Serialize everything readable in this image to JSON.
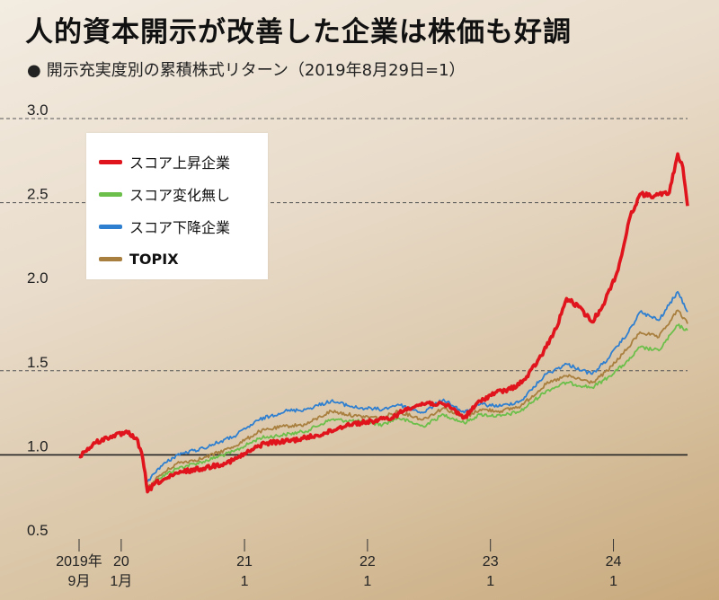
{
  "title": "人的資本開示が改善した企業は株価も好調",
  "subtitle": "開示充実度別の累積株式リターン（2019年8月29日=1）",
  "colors": {
    "score_up": "#e0141c",
    "score_flat": "#6cbf4a",
    "score_down": "#2f7fd0",
    "topix": "#a87f3e",
    "baseline": "#222222"
  },
  "chart_data": {
    "type": "line",
    "x_unit": "date",
    "ylim": [
      0.5,
      3.0
    ],
    "yticks": [
      0.5,
      1.0,
      1.5,
      2.0,
      2.5,
      3.0
    ],
    "ytick_labels": [
      "0.5",
      "1.0",
      "1.5",
      "2.0",
      "2.5",
      "3.0"
    ],
    "xticks": [
      {
        "date": "2019-09",
        "year": "2019年",
        "month": "9月"
      },
      {
        "date": "2020-01",
        "year": "20",
        "month": "1月"
      },
      {
        "date": "2021-01",
        "year": "21",
        "month": "1"
      },
      {
        "date": "2022-01",
        "year": "22",
        "month": "1"
      },
      {
        "date": "2023-01",
        "year": "23",
        "month": "1"
      },
      {
        "date": "2024-01",
        "year": "24",
        "month": "1"
      }
    ],
    "grid": "dashed horizontal at 1.5, 2.5, 3.0",
    "reference_line": 1.0,
    "legend_position": "top-left",
    "series": [
      {
        "name": "スコア上昇企業",
        "color_key": "score_up",
        "points": [
          [
            "2019-08-29",
            0.99
          ],
          [
            "2019-10-15",
            1.07
          ],
          [
            "2019-12-01",
            1.11
          ],
          [
            "2020-01-20",
            1.13
          ],
          [
            "2020-02-15",
            1.1
          ],
          [
            "2020-03-05",
            0.98
          ],
          [
            "2020-03-19",
            0.78
          ],
          [
            "2020-04-10",
            0.83
          ],
          [
            "2020-05-15",
            0.86
          ],
          [
            "2020-07-01",
            0.9
          ],
          [
            "2020-09-01",
            0.92
          ],
          [
            "2020-11-01",
            0.95
          ],
          [
            "2020-12-01",
            0.97
          ],
          [
            "2021-01-15",
            1.02
          ],
          [
            "2021-03-01",
            1.07
          ],
          [
            "2021-05-01",
            1.08
          ],
          [
            "2021-07-01",
            1.1
          ],
          [
            "2021-09-01",
            1.13
          ],
          [
            "2021-11-01",
            1.18
          ],
          [
            "2022-01-15",
            1.2
          ],
          [
            "2022-03-15",
            1.22
          ],
          [
            "2022-05-01",
            1.28
          ],
          [
            "2022-07-01",
            1.31
          ],
          [
            "2022-09-01",
            1.29
          ],
          [
            "2022-10-15",
            1.22
          ],
          [
            "2022-12-01",
            1.32
          ],
          [
            "2023-01-15",
            1.37
          ],
          [
            "2023-03-01",
            1.39
          ],
          [
            "2023-04-15",
            1.45
          ],
          [
            "2023-06-01",
            1.59
          ],
          [
            "2023-07-15",
            1.75
          ],
          [
            "2023-08-15",
            1.93
          ],
          [
            "2023-09-20",
            1.88
          ],
          [
            "2023-10-30",
            1.79
          ],
          [
            "2023-12-01",
            1.89
          ],
          [
            "2024-01-15",
            2.1
          ],
          [
            "2024-02-20",
            2.42
          ],
          [
            "2024-03-20",
            2.55
          ],
          [
            "2024-05-01",
            2.54
          ],
          [
            "2024-06-15",
            2.56
          ],
          [
            "2024-07-10",
            2.79
          ],
          [
            "2024-07-25",
            2.71
          ],
          [
            "2024-08-08",
            2.48
          ]
        ]
      },
      {
        "name": "スコア変化無し",
        "color_key": "score_flat",
        "points": [
          [
            "2020-03-19",
            0.8
          ],
          [
            "2020-04-20",
            0.86
          ],
          [
            "2020-06-15",
            0.92
          ],
          [
            "2020-09-01",
            0.96
          ],
          [
            "2020-12-01",
            1.02
          ],
          [
            "2021-02-15",
            1.1
          ],
          [
            "2021-05-01",
            1.12
          ],
          [
            "2021-07-01",
            1.14
          ],
          [
            "2021-09-15",
            1.21
          ],
          [
            "2021-12-01",
            1.2
          ],
          [
            "2022-02-15",
            1.18
          ],
          [
            "2022-04-01",
            1.22
          ],
          [
            "2022-06-15",
            1.17
          ],
          [
            "2022-08-15",
            1.24
          ],
          [
            "2022-10-15",
            1.19
          ],
          [
            "2022-12-01",
            1.24
          ],
          [
            "2023-02-01",
            1.23
          ],
          [
            "2023-04-01",
            1.26
          ],
          [
            "2023-06-15",
            1.38
          ],
          [
            "2023-08-15",
            1.43
          ],
          [
            "2023-10-30",
            1.4
          ],
          [
            "2023-12-15",
            1.46
          ],
          [
            "2024-02-15",
            1.56
          ],
          [
            "2024-03-20",
            1.64
          ],
          [
            "2024-05-15",
            1.62
          ],
          [
            "2024-07-10",
            1.77
          ],
          [
            "2024-08-08",
            1.74
          ]
        ]
      },
      {
        "name": "スコア下降企業",
        "color_key": "score_down",
        "points": [
          [
            "2020-03-19",
            0.84
          ],
          [
            "2020-04-20",
            0.92
          ],
          [
            "2020-06-15",
            1.0
          ],
          [
            "2020-09-01",
            1.04
          ],
          [
            "2020-12-01",
            1.11
          ],
          [
            "2021-02-15",
            1.21
          ],
          [
            "2021-05-01",
            1.26
          ],
          [
            "2021-07-01",
            1.27
          ],
          [
            "2021-09-15",
            1.32
          ],
          [
            "2021-12-01",
            1.28
          ],
          [
            "2022-02-15",
            1.27
          ],
          [
            "2022-04-01",
            1.3
          ],
          [
            "2022-06-15",
            1.25
          ],
          [
            "2022-08-15",
            1.33
          ],
          [
            "2022-10-15",
            1.25
          ],
          [
            "2022-12-01",
            1.3
          ],
          [
            "2023-02-01",
            1.29
          ],
          [
            "2023-04-01",
            1.32
          ],
          [
            "2023-06-15",
            1.48
          ],
          [
            "2023-08-15",
            1.54
          ],
          [
            "2023-10-30",
            1.48
          ],
          [
            "2023-12-15",
            1.57
          ],
          [
            "2024-02-15",
            1.73
          ],
          [
            "2024-03-20",
            1.85
          ],
          [
            "2024-05-15",
            1.8
          ],
          [
            "2024-07-10",
            1.97
          ],
          [
            "2024-08-08",
            1.85
          ]
        ]
      },
      {
        "name": "TOPIX",
        "color_key": "topix",
        "points": [
          [
            "2020-03-19",
            0.8
          ],
          [
            "2020-04-20",
            0.87
          ],
          [
            "2020-06-15",
            0.95
          ],
          [
            "2020-09-01",
            0.98
          ],
          [
            "2020-12-01",
            1.05
          ],
          [
            "2021-02-15",
            1.14
          ],
          [
            "2021-05-01",
            1.17
          ],
          [
            "2021-07-01",
            1.18
          ],
          [
            "2021-09-15",
            1.26
          ],
          [
            "2021-12-01",
            1.23
          ],
          [
            "2022-02-15",
            1.22
          ],
          [
            "2022-04-01",
            1.26
          ],
          [
            "2022-06-15",
            1.21
          ],
          [
            "2022-08-15",
            1.28
          ],
          [
            "2022-10-15",
            1.22
          ],
          [
            "2022-12-01",
            1.27
          ],
          [
            "2023-02-01",
            1.26
          ],
          [
            "2023-04-01",
            1.29
          ],
          [
            "2023-06-15",
            1.42
          ],
          [
            "2023-08-15",
            1.47
          ],
          [
            "2023-10-30",
            1.43
          ],
          [
            "2023-12-15",
            1.5
          ],
          [
            "2024-02-15",
            1.64
          ],
          [
            "2024-03-20",
            1.73
          ],
          [
            "2024-05-15",
            1.7
          ],
          [
            "2024-07-10",
            1.86
          ],
          [
            "2024-08-08",
            1.78
          ]
        ]
      }
    ]
  }
}
